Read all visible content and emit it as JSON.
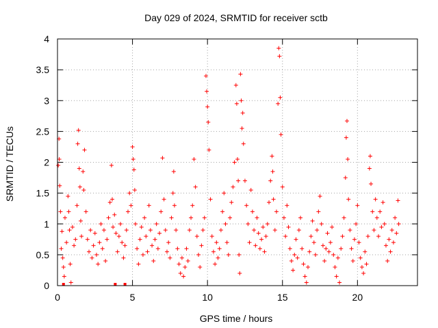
{
  "chart_data": {
    "type": "scatter",
    "title": "Day 029 of 2024, SRMTID for receiver sctb",
    "xlabel": "GPS time / hours",
    "ylabel": "SRMTID / TECUs",
    "xlim": [
      0,
      24
    ],
    "ylim": [
      0,
      4
    ],
    "xticks": [
      0,
      5,
      10,
      15,
      20
    ],
    "yticks": [
      0,
      0.5,
      1,
      1.5,
      2,
      2.5,
      3,
      3.5,
      4
    ],
    "xtick_labels": [
      "0",
      "5",
      "10",
      "15",
      "20"
    ],
    "ytick_labels": [
      "0",
      "0.5",
      "1",
      "1.5",
      "2",
      "2.5",
      "3",
      "3.5",
      "4"
    ],
    "grid": true,
    "marker": "+",
    "color": "#ff0000",
    "series": [
      {
        "name": "SRMTID",
        "points": [
          [
            0.05,
            1.95
          ],
          [
            0.1,
            2.38
          ],
          [
            0.12,
            2.05
          ],
          [
            0.15,
            1.62
          ],
          [
            0.2,
            1.2
          ],
          [
            0.25,
            0.6
          ],
          [
            0.3,
            0.88
          ],
          [
            0.35,
            0.45
          ],
          [
            0.4,
            0.3
          ],
          [
            0.45,
            0.15
          ],
          [
            0.5,
            1.1
          ],
          [
            0.6,
            0.7
          ],
          [
            0.7,
            1.45
          ],
          [
            0.75,
            1.2
          ],
          [
            0.8,
            0.9
          ],
          [
            0.85,
            0.35
          ],
          [
            0.9,
            0.05
          ],
          [
            1.0,
            0.95
          ],
          [
            1.1,
            0.65
          ],
          [
            1.2,
            0.75
          ],
          [
            1.3,
            1.3
          ],
          [
            1.35,
            2.3
          ],
          [
            1.4,
            2.52
          ],
          [
            1.45,
            1.9
          ],
          [
            1.5,
            1.6
          ],
          [
            1.55,
            1.05
          ],
          [
            1.6,
            0.8
          ],
          [
            1.7,
            1.85
          ],
          [
            1.75,
            1.55
          ],
          [
            1.8,
            2.2
          ],
          [
            1.9,
            1.2
          ],
          [
            2.0,
            0.75
          ],
          [
            2.1,
            0.55
          ],
          [
            2.2,
            0.9
          ],
          [
            2.3,
            0.45
          ],
          [
            2.4,
            0.65
          ],
          [
            2.5,
            0.85
          ],
          [
            2.6,
            0.5
          ],
          [
            2.7,
            0.35
          ],
          [
            2.8,
            0.7
          ],
          [
            2.9,
            1.0
          ],
          [
            3.0,
            0.6
          ],
          [
            3.1,
            0.9
          ],
          [
            3.2,
            0.4
          ],
          [
            3.3,
            0.75
          ],
          [
            3.4,
            1.1
          ],
          [
            3.5,
            1.35
          ],
          [
            3.6,
            1.95
          ],
          [
            3.65,
            1.4
          ],
          [
            3.7,
            0.95
          ],
          [
            3.8,
            1.15
          ],
          [
            3.9,
            0.85
          ],
          [
            4.0,
            0.55
          ],
          [
            4.1,
            0.8
          ],
          [
            4.2,
            1.0
          ],
          [
            4.3,
            0.7
          ],
          [
            4.4,
            0.45
          ],
          [
            4.5,
            0.65
          ],
          [
            4.6,
            0.9
          ],
          [
            4.7,
            1.2
          ],
          [
            4.8,
            1.5
          ],
          [
            4.9,
            1.3
          ],
          [
            5.0,
            2.25
          ],
          [
            5.05,
            2.05
          ],
          [
            5.1,
            1.88
          ],
          [
            5.15,
            1.55
          ],
          [
            5.2,
            1.0
          ],
          [
            5.3,
            0.6
          ],
          [
            5.4,
            0.35
          ],
          [
            5.5,
            0.75
          ],
          [
            5.6,
            0.95
          ],
          [
            5.7,
            0.5
          ],
          [
            5.8,
            1.1
          ],
          [
            5.9,
            0.8
          ],
          [
            6.0,
            0.55
          ],
          [
            6.1,
            1.3
          ],
          [
            6.2,
            0.9
          ],
          [
            6.3,
            0.65
          ],
          [
            6.4,
            0.4
          ],
          [
            6.5,
            0.75
          ],
          [
            6.6,
            1.0
          ],
          [
            6.7,
            0.6
          ],
          [
            6.8,
            0.85
          ],
          [
            6.9,
            1.2
          ],
          [
            7.0,
            2.07
          ],
          [
            7.1,
            1.4
          ],
          [
            7.2,
            0.9
          ],
          [
            7.3,
            0.55
          ],
          [
            7.4,
            0.7
          ],
          [
            7.5,
            0.45
          ],
          [
            7.6,
            1.1
          ],
          [
            7.7,
            1.5
          ],
          [
            7.75,
            1.85
          ],
          [
            7.8,
            1.3
          ],
          [
            7.9,
            0.9
          ],
          [
            8.0,
            0.6
          ],
          [
            8.1,
            0.35
          ],
          [
            8.2,
            0.2
          ],
          [
            8.3,
            0.45
          ],
          [
            8.4,
            0.15
          ],
          [
            8.5,
            0.3
          ],
          [
            8.6,
            0.6
          ],
          [
            8.7,
            0.4
          ],
          [
            8.8,
            0.9
          ],
          [
            8.9,
            1.1
          ],
          [
            9.0,
            1.3
          ],
          [
            9.1,
            2.05
          ],
          [
            9.2,
            1.6
          ],
          [
            9.3,
            0.8
          ],
          [
            9.4,
            0.5
          ],
          [
            9.5,
            0.3
          ],
          [
            9.6,
            0.65
          ],
          [
            9.7,
            0.9
          ],
          [
            9.8,
            1.1
          ],
          [
            9.9,
            3.4
          ],
          [
            9.95,
            3.15
          ],
          [
            10.0,
            2.9
          ],
          [
            10.05,
            2.65
          ],
          [
            10.1,
            2.2
          ],
          [
            10.2,
            1.4
          ],
          [
            10.3,
            0.8
          ],
          [
            10.4,
            0.55
          ],
          [
            10.5,
            0.35
          ],
          [
            10.6,
            0.7
          ],
          [
            10.7,
            0.45
          ],
          [
            10.8,
            0.6
          ],
          [
            10.9,
            0.9
          ],
          [
            11.0,
            1.2
          ],
          [
            11.1,
            1.5
          ],
          [
            11.2,
            1.0
          ],
          [
            11.3,
            0.7
          ],
          [
            11.4,
            0.5
          ],
          [
            11.5,
            1.1
          ],
          [
            11.6,
            1.35
          ],
          [
            11.7,
            1.6
          ],
          [
            11.8,
            2.0
          ],
          [
            11.9,
            3.25
          ],
          [
            11.95,
            2.95
          ],
          [
            12.0,
            2.05
          ],
          [
            12.05,
            1.7
          ],
          [
            12.1,
            0.5
          ],
          [
            12.15,
            0.2
          ],
          [
            12.2,
            3.43
          ],
          [
            12.25,
            3.0
          ],
          [
            12.3,
            2.55
          ],
          [
            12.35,
            2.8
          ],
          [
            12.4,
            2.3
          ],
          [
            12.5,
            1.7
          ],
          [
            12.6,
            1.3
          ],
          [
            12.7,
            1.0
          ],
          [
            12.8,
            0.7
          ],
          [
            12.9,
            1.55
          ],
          [
            13.0,
            1.2
          ],
          [
            13.1,
            0.9
          ],
          [
            13.2,
            0.65
          ],
          [
            13.3,
            1.1
          ],
          [
            13.4,
            0.85
          ],
          [
            13.5,
            0.6
          ],
          [
            13.6,
            0.75
          ],
          [
            13.7,
            0.95
          ],
          [
            13.8,
            0.55
          ],
          [
            13.9,
            0.8
          ],
          [
            14.0,
            1.0
          ],
          [
            14.1,
            1.35
          ],
          [
            14.2,
            1.7
          ],
          [
            14.3,
            2.1
          ],
          [
            14.35,
            1.85
          ],
          [
            14.4,
            1.4
          ],
          [
            14.5,
            0.9
          ],
          [
            14.6,
            1.2
          ],
          [
            14.7,
            2.95
          ],
          [
            14.75,
            3.85
          ],
          [
            14.8,
            3.72
          ],
          [
            14.85,
            3.05
          ],
          [
            14.9,
            2.45
          ],
          [
            15.0,
            1.6
          ],
          [
            15.1,
            1.1
          ],
          [
            15.2,
            0.8
          ],
          [
            15.3,
            1.3
          ],
          [
            15.4,
            0.95
          ],
          [
            15.5,
            0.6
          ],
          [
            15.6,
            0.4
          ],
          [
            15.7,
            0.25
          ],
          [
            15.8,
            0.5
          ],
          [
            15.9,
            0.75
          ],
          [
            16.0,
            0.45
          ],
          [
            16.1,
            0.9
          ],
          [
            16.2,
            1.1
          ],
          [
            16.3,
            0.6
          ],
          [
            16.4,
            0.35
          ],
          [
            16.5,
            0.15
          ],
          [
            16.6,
            0.05
          ],
          [
            16.7,
            0.3
          ],
          [
            16.8,
            0.55
          ],
          [
            16.9,
            0.8
          ],
          [
            17.0,
            1.05
          ],
          [
            17.1,
            0.7
          ],
          [
            17.2,
            0.5
          ],
          [
            17.3,
            0.9
          ],
          [
            17.4,
            1.2
          ],
          [
            17.5,
            1.45
          ],
          [
            17.6,
            1.0
          ],
          [
            17.7,
            0.65
          ],
          [
            17.8,
            0.4
          ],
          [
            17.9,
            0.6
          ],
          [
            18.0,
            0.85
          ],
          [
            18.1,
            0.55
          ],
          [
            18.2,
            0.7
          ],
          [
            18.3,
            0.95
          ],
          [
            18.4,
            0.5
          ],
          [
            18.5,
            0.3
          ],
          [
            18.6,
            0.15
          ],
          [
            18.7,
            0.45
          ],
          [
            18.8,
            0.05
          ],
          [
            18.9,
            0.6
          ],
          [
            19.0,
            0.8
          ],
          [
            19.1,
            1.1
          ],
          [
            19.2,
            1.75
          ],
          [
            19.25,
            2.4
          ],
          [
            19.3,
            2.67
          ],
          [
            19.35,
            2.05
          ],
          [
            19.4,
            1.4
          ],
          [
            19.5,
            0.9
          ],
          [
            19.6,
            0.6
          ],
          [
            19.7,
            0.4
          ],
          [
            19.8,
            0.75
          ],
          [
            19.9,
            1.0
          ],
          [
            20.0,
            1.3
          ],
          [
            20.1,
            0.7
          ],
          [
            20.2,
            0.45
          ],
          [
            20.3,
            0.3
          ],
          [
            20.4,
            0.2
          ],
          [
            20.5,
            0.55
          ],
          [
            20.6,
            0.35
          ],
          [
            20.7,
            0.8
          ],
          [
            20.8,
            1.9
          ],
          [
            20.85,
            2.1
          ],
          [
            20.9,
            1.65
          ],
          [
            21.0,
            1.2
          ],
          [
            21.1,
            0.9
          ],
          [
            21.2,
            1.4
          ],
          [
            21.3,
            1.1
          ],
          [
            21.4,
            0.8
          ],
          [
            21.5,
            1.2
          ],
          [
            21.6,
            0.95
          ],
          [
            21.7,
            1.35
          ],
          [
            21.8,
            1.0
          ],
          [
            21.9,
            0.65
          ],
          [
            22.0,
            0.4
          ],
          [
            22.1,
            0.75
          ],
          [
            22.2,
            0.55
          ],
          [
            22.3,
            0.9
          ],
          [
            22.4,
            0.7
          ],
          [
            22.5,
            1.1
          ],
          [
            22.6,
            0.85
          ],
          [
            22.7,
            1.38
          ],
          [
            22.75,
            1.0
          ]
        ]
      }
    ],
    "low_markers_x": [
      0.4,
      3.85,
      4.5
    ]
  }
}
